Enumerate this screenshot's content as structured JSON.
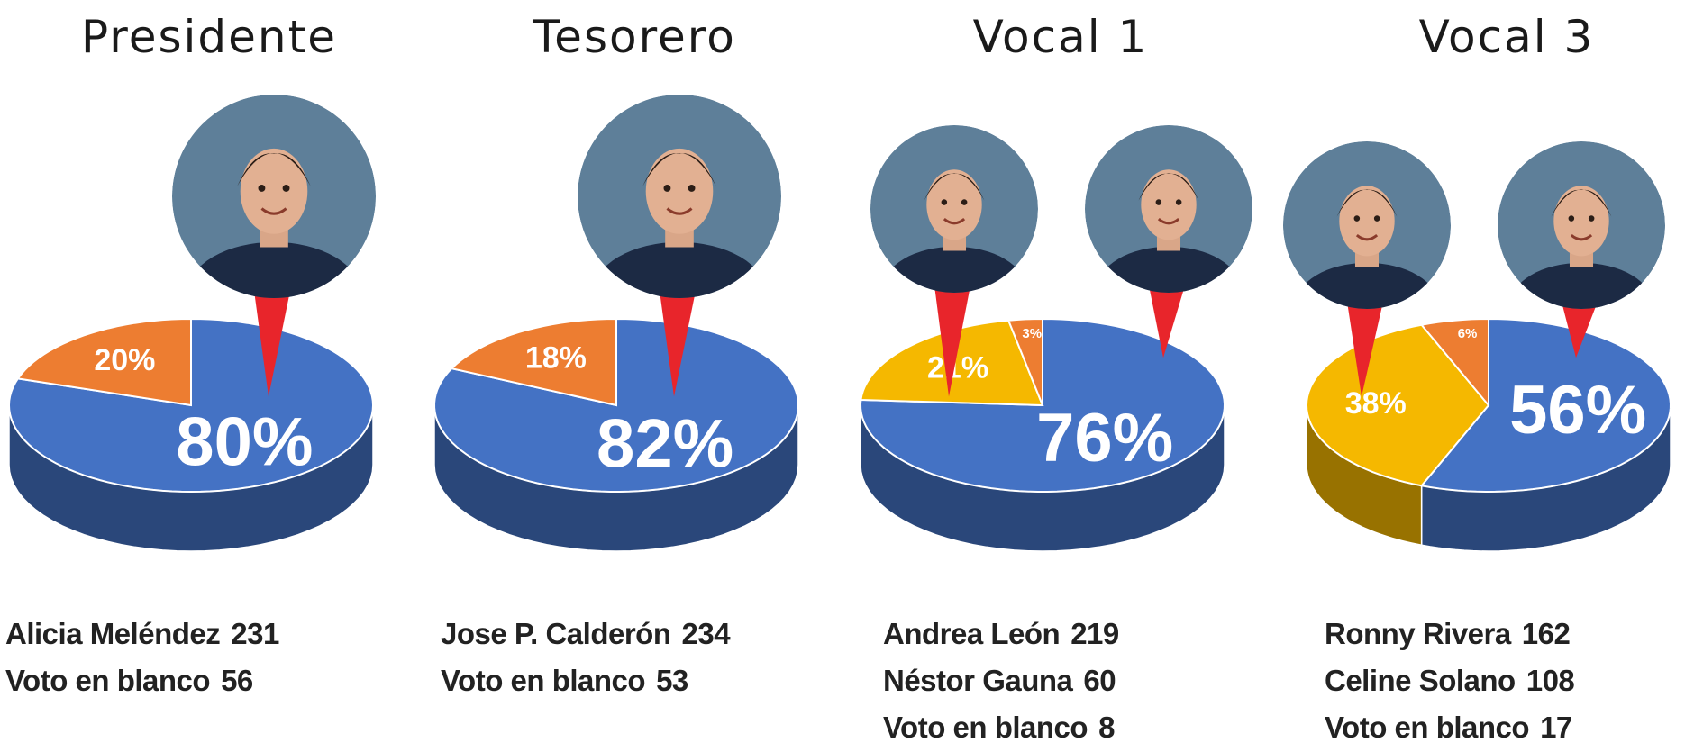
{
  "chart_data": [
    {
      "type": "pie",
      "title": "Presidente",
      "categories": [
        "Alicia Meléndez",
        "Voto en blanco"
      ],
      "values": [
        80,
        20
      ],
      "value_labels": [
        "80%",
        "20%"
      ],
      "votes": [
        231,
        56
      ],
      "colors": [
        "#4472c4",
        "#ed7d31"
      ]
    },
    {
      "type": "pie",
      "title": "Tesorero",
      "categories": [
        "Jose P. Calderón",
        "Voto en blanco"
      ],
      "values": [
        82,
        18
      ],
      "value_labels": [
        "82%",
        "18%"
      ],
      "votes": [
        234,
        53
      ],
      "colors": [
        "#4472c4",
        "#ed7d31"
      ]
    },
    {
      "type": "pie",
      "title": "Vocal 1",
      "categories": [
        "Andrea León",
        "Néstor Gauna",
        "Voto en blanco"
      ],
      "values": [
        76,
        21,
        3
      ],
      "value_labels": [
        "76%",
        "21%",
        "3%"
      ],
      "votes": [
        219,
        60,
        8
      ],
      "colors": [
        "#4472c4",
        "#f5b800",
        "#ed7d31"
      ]
    },
    {
      "type": "pie",
      "title": "Vocal 3",
      "categories": [
        "Ronny Rivera",
        "Celine Solano",
        "Voto en blanco"
      ],
      "values": [
        56,
        38,
        6
      ],
      "value_labels": [
        "56%",
        "38%",
        "6%"
      ],
      "votes": [
        162,
        108,
        17
      ],
      "colors": [
        "#4472c4",
        "#f5b800",
        "#ed7d31"
      ]
    }
  ]
}
